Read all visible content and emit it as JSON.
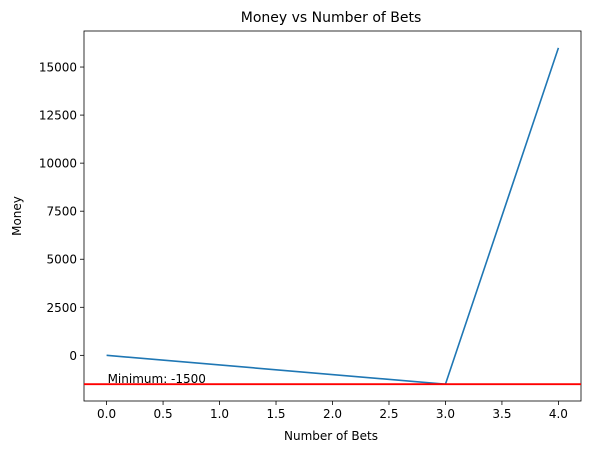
{
  "chart_data": {
    "type": "line",
    "title": "Money vs Number of Bets",
    "xlabel": "Number of Bets",
    "ylabel": "Money",
    "x": [
      0,
      3,
      4
    ],
    "series": [
      {
        "values": [
          0,
          -1500,
          16000
        ],
        "color": "#1f77b4"
      }
    ],
    "xlim": [
      -0.2,
      4.2
    ],
    "ylim": [
      -2375,
      16875
    ],
    "xticks": [
      0.0,
      0.5,
      1.0,
      1.5,
      2.0,
      2.5,
      3.0,
      3.5,
      4.0
    ],
    "xtick_labels": [
      "0.0",
      "0.5",
      "1.0",
      "1.5",
      "2.0",
      "2.5",
      "3.0",
      "3.5",
      "4.0"
    ],
    "yticks": [
      0,
      2500,
      5000,
      7500,
      10000,
      12500,
      15000
    ],
    "ytick_labels": [
      "0",
      "2500",
      "5000",
      "7500",
      "10000",
      "12500",
      "15000"
    ],
    "hline": {
      "y": -1500,
      "color": "#ff0000"
    },
    "annotation": {
      "text": "Minimum: -1500",
      "x": 0,
      "y": -1500
    },
    "grid": false
  }
}
